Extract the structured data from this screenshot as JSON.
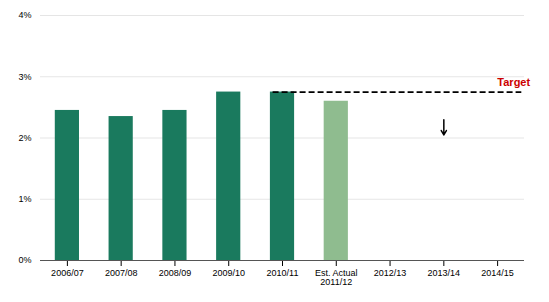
{
  "chart_data": {
    "type": "bar",
    "categories": [
      "2006/07",
      "2007/08",
      "2008/09",
      "2009/10",
      "2010/11",
      "Est. Actual\n2011/12",
      "2012/13",
      "2013/14",
      "2014/15"
    ],
    "values": [
      2.45,
      2.35,
      2.45,
      2.75,
      2.75,
      2.6,
      null,
      null,
      null
    ],
    "colors": [
      "#1a7a5e",
      "#1a7a5e",
      "#1a7a5e",
      "#1a7a5e",
      "#1a7a5e",
      "#8fbc8f",
      null,
      null,
      null
    ],
    "ylim": [
      0,
      4.0
    ],
    "yticks": [
      {
        "value": 0,
        "label": "0%"
      },
      {
        "value": 1,
        "label": "1%"
      },
      {
        "value": 2,
        "label": "2%"
      },
      {
        "value": 3,
        "label": "3%"
      },
      {
        "value": 4,
        "label": "4%"
      }
    ],
    "grid": true,
    "reference_lines": [
      {
        "y": 2.75,
        "label": "Target",
        "label_color": "#cc0000",
        "color": "#000000",
        "line_style": "dashed",
        "from_category": "2010/11"
      }
    ],
    "arrows": [
      {
        "category": "2013/14",
        "y_start": 2.3,
        "y_end": 2.05
      }
    ]
  }
}
